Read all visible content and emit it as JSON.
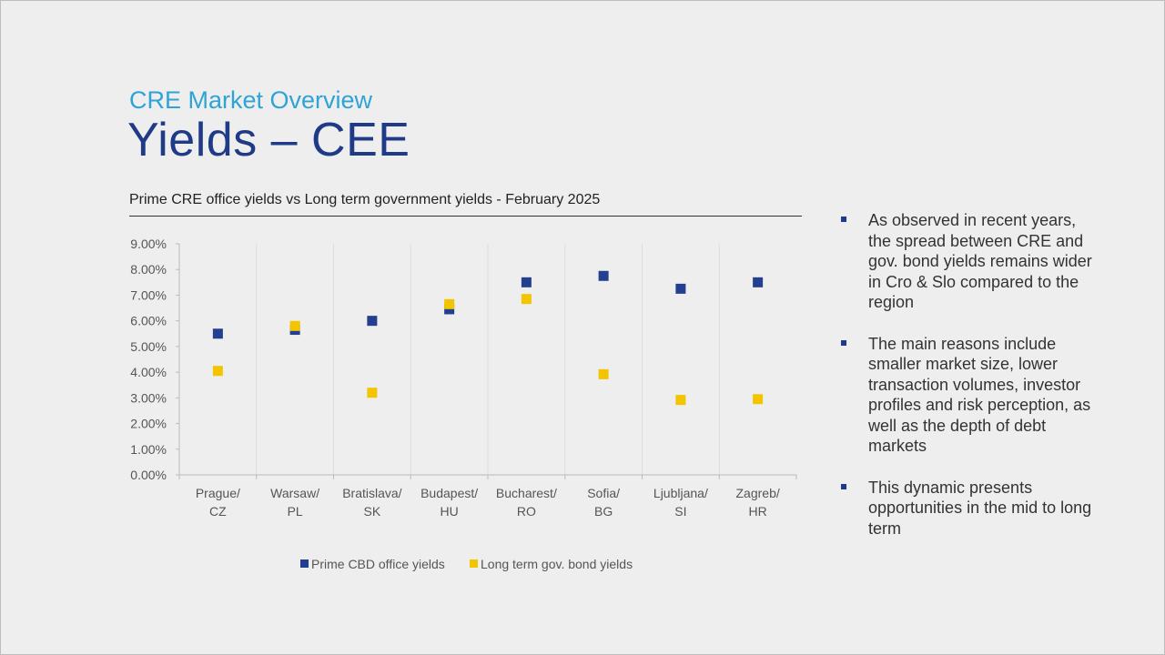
{
  "slide": {
    "kicker": "CRE Market Overview",
    "title": "Yields – CEE",
    "chart_heading": "Prime CRE office yields vs Long term government yields - February 2025"
  },
  "bullets": [
    "As observed in recent years, the spread between CRE and gov. bond yields remains wider in Cro & Slo compared to the region",
    "The main reasons include smaller market size, lower transaction volumes, investor profiles and risk perception, as well as the depth of debt markets",
    "This dynamic presents opportunities in the mid to long term"
  ],
  "colors": {
    "prime": "#233f8f",
    "bond": "#f2c500",
    "kicker": "#2fa3d6",
    "title": "#1f3a86"
  },
  "chart_data": {
    "type": "scatter",
    "title": "Prime CRE office yields vs Long term government yields - February 2025",
    "categories": [
      [
        "Prague/",
        "CZ"
      ],
      [
        "Warsaw/",
        "PL"
      ],
      [
        "Bratislava/",
        "SK"
      ],
      [
        "Budapest/",
        "HU"
      ],
      [
        "Bucharest/",
        "RO"
      ],
      [
        "Sofia/",
        "BG"
      ],
      [
        "Ljubljana/",
        "SI"
      ],
      [
        "Zagreb/",
        "HR"
      ]
    ],
    "series": [
      {
        "name": "Prime CBD office yields",
        "color": "#233f8f",
        "values": [
          5.5,
          5.65,
          6.0,
          6.45,
          7.5,
          7.75,
          7.25,
          7.5
        ]
      },
      {
        "name": "Long term gov. bond yields",
        "color": "#f2c500",
        "values": [
          4.05,
          5.8,
          3.2,
          6.65,
          6.85,
          3.92,
          2.92,
          2.95
        ]
      }
    ],
    "ylim": [
      0,
      9
    ],
    "yticks": [
      "0.00%",
      "1.00%",
      "2.00%",
      "3.00%",
      "4.00%",
      "5.00%",
      "6.00%",
      "7.00%",
      "8.00%",
      "9.00%"
    ],
    "legend": [
      "Prime CBD office yields",
      "Long term gov. bond yields"
    ],
    "legend_position": "bottom"
  }
}
